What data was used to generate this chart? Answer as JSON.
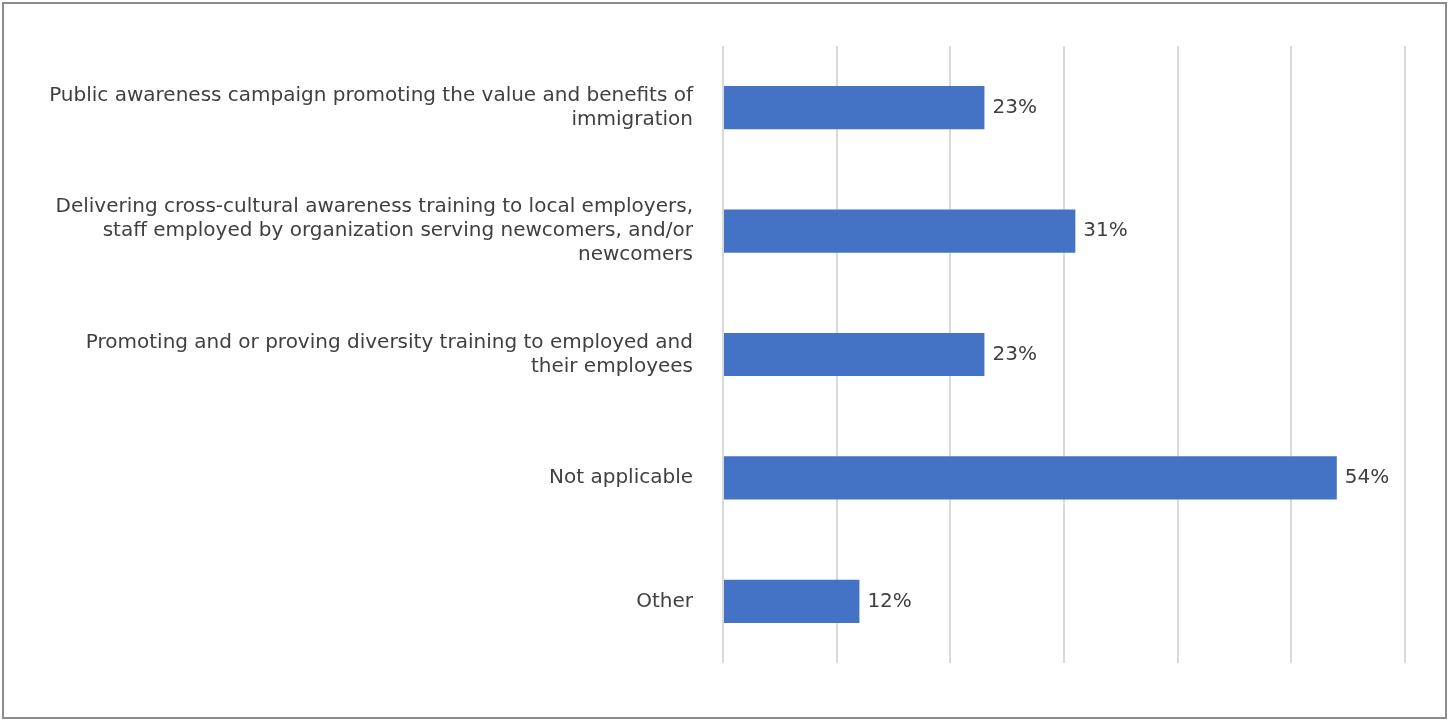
{
  "chart_data": {
    "type": "bar",
    "orientation": "horizontal",
    "categories": [
      "Public awareness campaign promoting the value and benefits of immigration",
      "Delivering cross-cultural awareness training to local employers, staff employed by organization serving newcomers, and/or newcomers",
      "Promoting and or proving diversity training to employed and their employees",
      "Not applicable",
      "Other"
    ],
    "values": [
      23,
      31,
      23,
      54,
      12
    ],
    "value_labels": [
      "23%",
      "31%",
      "23%",
      "54%",
      "12%"
    ],
    "color": "#4472c4",
    "xlim": [
      0,
      60
    ],
    "xticks": [
      {
        "value": 0,
        "label": null
      },
      {
        "value": 10,
        "label": null
      },
      {
        "value": 20,
        "label": null
      },
      {
        "value": 30,
        "label": null
      },
      {
        "value": 40,
        "label": null
      },
      {
        "value": 50,
        "label": null
      },
      {
        "value": 60,
        "label": null
      }
    ],
    "grid": "x",
    "tick_labels": "y",
    "legend": false
  }
}
